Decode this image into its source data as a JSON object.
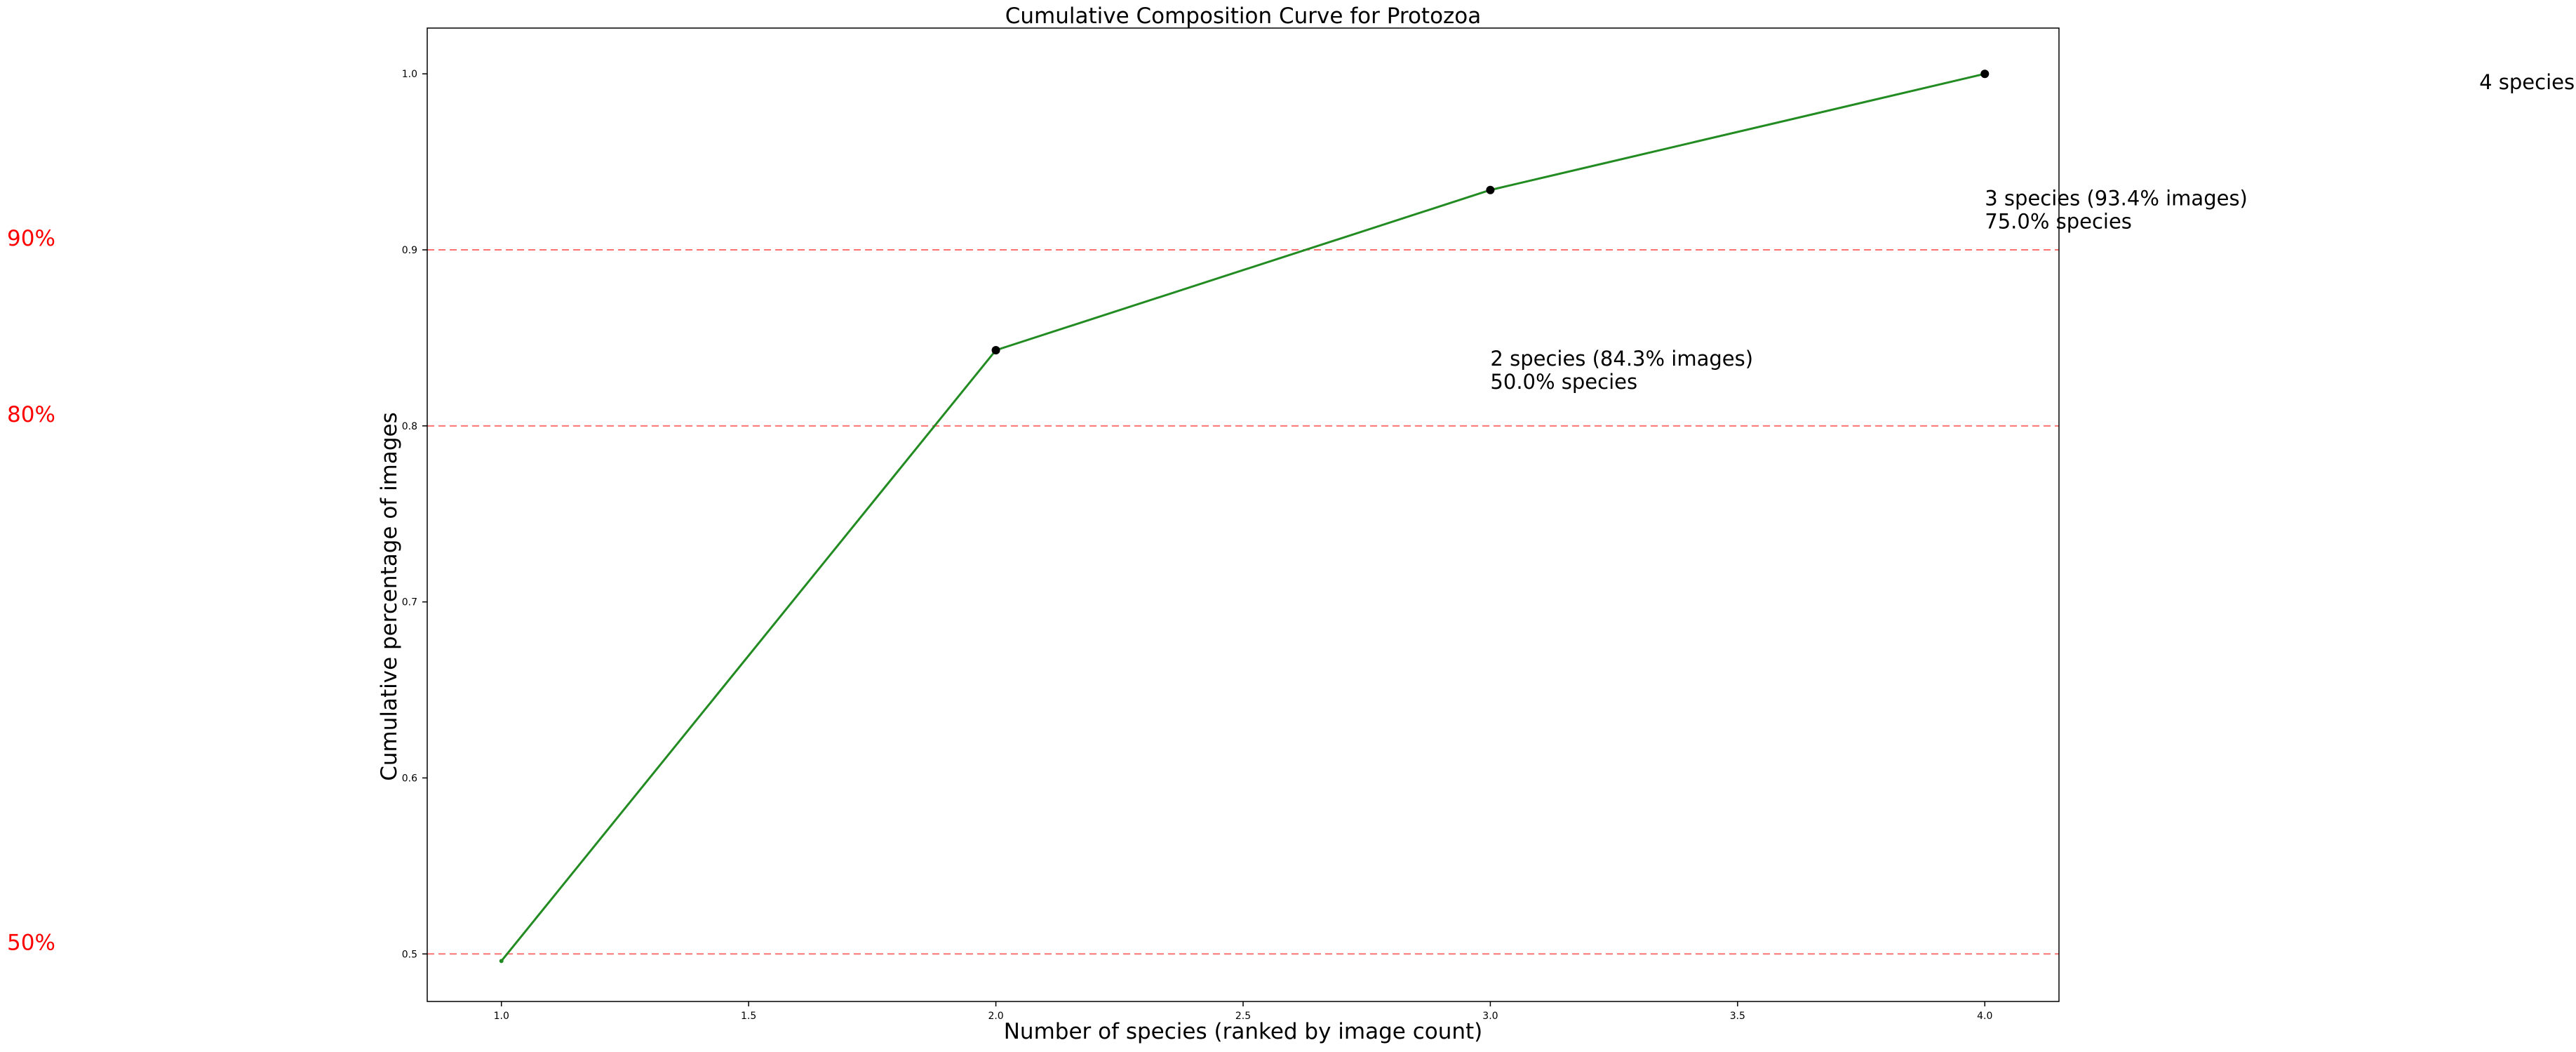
{
  "chart_data": {
    "type": "line",
    "title": "Cumulative Composition Curve for Protozoa",
    "xlabel": "Number of species (ranked by image count)",
    "ylabel": "Cumulative percentage of images",
    "xlim": [
      0.85,
      4.15
    ],
    "ylim": [
      0.473,
      1.026
    ],
    "grid": false,
    "x_ticks": [
      1.0,
      1.5,
      2.0,
      2.5,
      3.0,
      3.5,
      4.0
    ],
    "x_tick_labels": [
      "1.0",
      "1.5",
      "2.0",
      "2.5",
      "3.0",
      "3.5",
      "4.0"
    ],
    "y_ticks": [
      0.5,
      0.6,
      0.7,
      0.8,
      0.9,
      1.0
    ],
    "y_tick_labels": [
      "0.5",
      "0.6",
      "0.7",
      "0.8",
      "0.9",
      "1.0"
    ],
    "series": [
      {
        "x": [
          1,
          2,
          3,
          4
        ],
        "y": [
          0.496,
          0.843,
          0.934,
          1.0
        ],
        "color": "#228b22"
      }
    ],
    "highlighted_points": {
      "x": [
        2,
        3,
        4
      ],
      "y": [
        0.843,
        0.934,
        1.0
      ],
      "color": "#000000"
    },
    "threshold_lines": [
      {
        "y": 0.5,
        "label": "50%",
        "color": "#ff0000"
      },
      {
        "y": 0.8,
        "label": "80%",
        "color": "#ff0000"
      },
      {
        "y": 0.9,
        "label": "90%",
        "color": "#ff0000"
      }
    ],
    "annotations": [
      {
        "line1": "2 species (84.3% images)",
        "line2": "50.0% species",
        "x": 3.0,
        "y": 0.843
      },
      {
        "line1": "3 species (93.4% images)",
        "line2": "75.0% species",
        "x": 4.0,
        "y": 0.934
      },
      {
        "line1": "4 species",
        "line2": "",
        "x": 5.0,
        "y": 1.0
      }
    ]
  }
}
